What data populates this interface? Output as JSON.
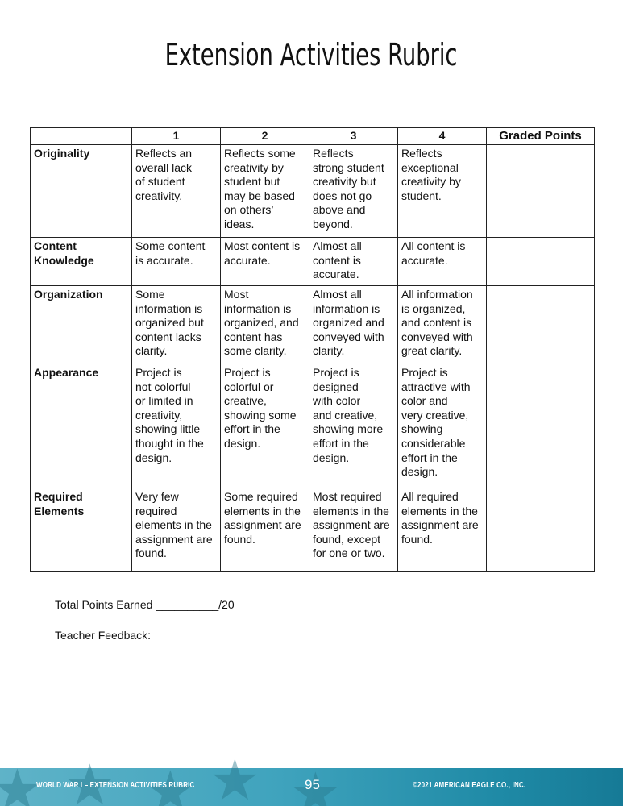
{
  "title": "Extension Activities Rubric",
  "table": {
    "headers": [
      "",
      "1",
      "2",
      "3",
      "4",
      "Graded Points"
    ],
    "rows": [
      {
        "criterion": "Originality",
        "cells": [
          "Reflects an\noverall lack\nof student\ncreativity.",
          "Reflects some\ncreativity by\nstudent but\nmay be based\non others’\nideas.",
          "Reflects\nstrong student\ncreativity but\ndoes not go\nabove and\nbeyond.",
          "Reflects\nexceptional\ncreativity by\nstudent.",
          ""
        ]
      },
      {
        "criterion": "Content\nKnowledge",
        "cells": [
          "Some content\nis accurate.",
          "Most content is\naccurate.",
          "Almost all\ncontent is\naccurate.",
          "All content is\naccurate.",
          ""
        ]
      },
      {
        "criterion": "Organization",
        "cells": [
          "Some\ninformation is\norganized but\ncontent lacks\nclarity.",
          "Most\ninformation is\norganized, and\ncontent has\nsome clarity.",
          "Almost all\ninformation is\norganized and\nconveyed with\nclarity.",
          "All information\nis organized,\nand content is\nconveyed with\ngreat clarity.",
          ""
        ]
      },
      {
        "criterion": "Appearance",
        "cells": [
          "Project is\nnot colorful\nor limited in\ncreativity,\nshowing little\nthought in the\ndesign.",
          "Project is\ncolorful or\ncreative,\nshowing some\neffort in the\ndesign.",
          "Project is\ndesigned\nwith color\nand creative,\nshowing more\neffort in the\ndesign.",
          "Project is\nattractive with\ncolor and\nvery creative,\nshowing\nconsiderable\neffort in the\ndesign.",
          ""
        ]
      },
      {
        "criterion": "Required\nElements",
        "cells": [
          "Very few\nrequired\nelements in the\nassignment are\nfound.",
          "Some required\nelements in the\nassignment are\nfound.",
          "Most required\nelements in the\nassignment are\nfound, except\nfor one or two.",
          "All required\nelements in the\nassignment are\nfound.",
          ""
        ]
      }
    ]
  },
  "total_points": "Total Points Earned __________/20",
  "teacher_feedback": "Teacher Feedback:",
  "footer": {
    "left": "WORLD WAR I – EXTENSION ACTIVITIES RUBRIC",
    "page": "95",
    "right": "©2021 AMERICAN EAGLE CO., INC.",
    "colors": [
      "#5fb3c8",
      "#167a96"
    ]
  }
}
